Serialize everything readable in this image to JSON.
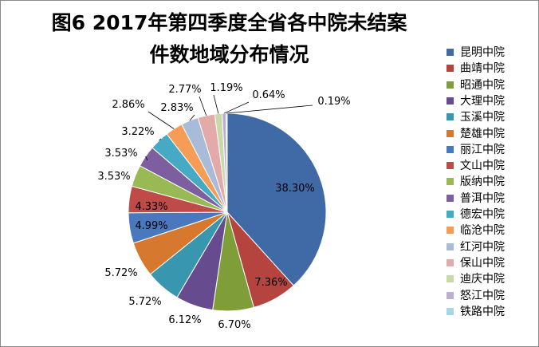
{
  "title_line1": "图6  2017年第四季度全省各中院未结案",
  "title_line2": "件数地域分布情况",
  "chart_data": {
    "type": "pie",
    "categories": [
      "昆明中院",
      "曲靖中院",
      "昭通中院",
      "大理中院",
      "玉溪中院",
      "楚雄中院",
      "丽江中院",
      "文山中院",
      "版纳中院",
      "普洱中院",
      "德宏中院",
      "临沧中院",
      "红河中院",
      "保山中院",
      "迪庆中院",
      "怒江中院",
      "铁路中院"
    ],
    "values": [
      38.3,
      7.36,
      6.7,
      6.12,
      5.72,
      5.72,
      4.99,
      4.33,
      3.53,
      3.53,
      3.22,
      2.86,
      2.83,
      2.77,
      1.19,
      0.64,
      0.19
    ],
    "data_labels": [
      "38.30%",
      "7.36%",
      "6.70%",
      "6.12%",
      "5.72%",
      "5.72%",
      "4.99%",
      "4.33%",
      "3.53%",
      "3.53%",
      "3.22%",
      "2.86%",
      "2.83%",
      "2.77%",
      "1.19%",
      "0.64%",
      "0.19%"
    ],
    "colors": [
      "#3f6aa6",
      "#b5443f",
      "#7f9e3a",
      "#664c8f",
      "#3896ae",
      "#d6792e",
      "#4a78be",
      "#be4b48",
      "#98b954",
      "#7d5fa0",
      "#46aac5",
      "#f59d56",
      "#a8bbd8",
      "#e2aaa9",
      "#c9d9a9",
      "#bcaed0",
      "#a9d6e4"
    ],
    "legend_position": "right"
  }
}
